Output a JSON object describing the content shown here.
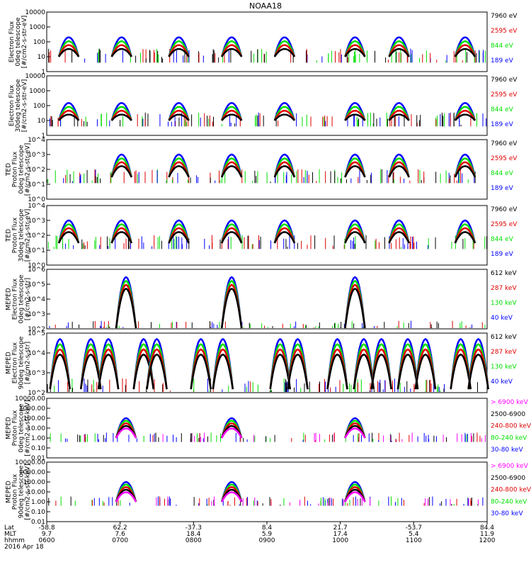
{
  "title": "NOAA18",
  "colors": {
    "black": "#000000",
    "red": "#e00000",
    "green": "#00e000",
    "blue": "#0000ff",
    "magenta": "#ff00ff"
  },
  "footer": {
    "row_labels": [
      "Lat",
      "MLT",
      "hhmm"
    ],
    "date": "2016 Apr 18",
    "columns": [
      {
        "lat": "-58.8",
        "mlt": "9.7",
        "hhmm": "0600"
      },
      {
        "lat": "62.2",
        "mlt": "7.6",
        "hhmm": "0700"
      },
      {
        "lat": "-37.3",
        "mlt": "18.4",
        "hhmm": "0800"
      },
      {
        "lat": "8.4",
        "mlt": "5.9",
        "hhmm": "0900"
      },
      {
        "lat": "21.7",
        "mlt": "17.4",
        "hhmm": "1000"
      },
      {
        "lat": "-53.7",
        "mlt": "5.4",
        "hhmm": "1100"
      },
      {
        "lat": "84.4",
        "mlt": "11.9",
        "hhmm": "1200"
      }
    ]
  },
  "chart_data": [
    {
      "type": "scatter",
      "ylabel": [
        "Electron Flux",
        "0deg telescope",
        "[#/cm2-s-str-eV]"
      ],
      "yticks": [
        "1",
        "10",
        "100",
        "1000",
        "10000"
      ],
      "legend": [
        {
          "label": "7960 eV",
          "color": "black"
        },
        {
          "label": "2595 eV",
          "color": "red"
        },
        {
          "label": "844 eV",
          "color": "green"
        },
        {
          "label": "189 eV",
          "color": "blue"
        }
      ],
      "passes": [
        0.05,
        0.17,
        0.3,
        0.42,
        0.54,
        0.7,
        0.8,
        0.95
      ],
      "baseline": 10,
      "peak": 200
    },
    {
      "type": "scatter",
      "ylabel": [
        "Electron Flux",
        "30deg telescope",
        "[#/cm2-s-str-eV]"
      ],
      "yticks": [
        "1",
        "10",
        "100",
        "1000",
        "10000"
      ],
      "legend": [
        {
          "label": "7960 eV",
          "color": "black"
        },
        {
          "label": "2595 eV",
          "color": "red"
        },
        {
          "label": "844 eV",
          "color": "green"
        },
        {
          "label": "189 eV",
          "color": "blue"
        }
      ],
      "passes": [
        0.05,
        0.17,
        0.3,
        0.42,
        0.54,
        0.7,
        0.8,
        0.95
      ],
      "baseline": 10,
      "peak": 150
    },
    {
      "type": "scatter",
      "ylabel": [
        "TED",
        "Proton Flux",
        "0deg telescope",
        "[#/cm2-s-str-eV]"
      ],
      "yticks": [
        "10^0",
        "10^1",
        "10^2",
        "10^3",
        "10^4"
      ],
      "legend": [
        {
          "label": "7960 eV",
          "color": "black"
        },
        {
          "label": "2595 eV",
          "color": "red"
        },
        {
          "label": "844 eV",
          "color": "green"
        },
        {
          "label": "189 eV",
          "color": "blue"
        }
      ],
      "passes": [
        0.17,
        0.3,
        0.42,
        0.54,
        0.7,
        0.8,
        0.95
      ],
      "baseline": 30,
      "peak": 1000
    },
    {
      "type": "scatter",
      "ylabel": [
        "TED",
        "Proton Flux",
        "30deg telescope",
        "[#/cm2-s-str-eV]"
      ],
      "yticks": [
        "10^0",
        "10^1",
        "10^2",
        "10^3",
        "10^4"
      ],
      "legend": [
        {
          "label": "7960 eV",
          "color": "black"
        },
        {
          "label": "2595 eV",
          "color": "red"
        },
        {
          "label": "844 eV",
          "color": "green"
        },
        {
          "label": "189 eV",
          "color": "blue"
        }
      ],
      "passes": [
        0.05,
        0.17,
        0.3,
        0.42,
        0.54,
        0.7,
        0.8,
        0.95
      ],
      "baseline": 30,
      "peak": 1000
    },
    {
      "type": "scatter",
      "ylabel": [
        "MEPED",
        "Electron Flux",
        "0deg telescope",
        "[#/cm2-s-str]"
      ],
      "yticks": [
        "10^2",
        "10^3",
        "10^4",
        "10^5",
        "10^6"
      ],
      "legend": [
        {
          "label": "612 keV",
          "color": "black"
        },
        {
          "label": "287 keV",
          "color": "red"
        },
        {
          "label": "130 keV",
          "color": "green"
        },
        {
          "label": "40 keV",
          "color": "blue"
        }
      ],
      "passes": [
        0.18,
        0.42,
        0.7
      ],
      "baseline": 100,
      "peak": 300000
    },
    {
      "type": "scatter",
      "ylabel": [
        "MEPED",
        "Electron Flux",
        "90deg telescope",
        "[#/cm2-s-str]"
      ],
      "yticks": [
        "10^2",
        "10^3",
        "10^4",
        "10^5"
      ],
      "legend": [
        {
          "label": "612 keV",
          "color": "black"
        },
        {
          "label": "287 keV",
          "color": "red"
        },
        {
          "label": "130 keV",
          "color": "green"
        },
        {
          "label": "40 keV",
          "color": "blue"
        }
      ],
      "passes": [
        0.03,
        0.1,
        0.14,
        0.22,
        0.25,
        0.35,
        0.4,
        0.53,
        0.57,
        0.66,
        0.72,
        0.76,
        0.82,
        0.86,
        0.94,
        0.98
      ],
      "baseline": 150,
      "peak": 50000
    },
    {
      "type": "scatter",
      "ylabel": [
        "MEPED",
        "Proton Flux",
        "0deg telescope",
        "[#/cm2-s-str-keV]"
      ],
      "yticks": [
        "0.01",
        "0.10",
        "1.00",
        "10.00",
        "100.00",
        "1000.00",
        "10000.00"
      ],
      "legend": [
        {
          "label": "> 6900 keV",
          "color": "magenta"
        },
        {
          "label": "2500-6900",
          "color": "black"
        },
        {
          "label": "240-800 keV",
          "color": "red"
        },
        {
          "label": "80-240 keV",
          "color": "green"
        },
        {
          "label": "30-80 keV",
          "color": "blue"
        }
      ],
      "passes": [
        0.18,
        0.42,
        0.7
      ],
      "baseline": 1,
      "peak": 100
    },
    {
      "type": "scatter",
      "ylabel": [
        "MEPED",
        "Proton Flux",
        "90deg telescope",
        "[#/cm2-s-str-keV]"
      ],
      "yticks": [
        "0.01",
        "0.10",
        "1.00",
        "10.00",
        "100.00",
        "1000.00",
        "10000.00"
      ],
      "legend": [
        {
          "label": "> 6900 keV",
          "color": "magenta"
        },
        {
          "label": "2500-6900",
          "color": "black"
        },
        {
          "label": "240-800 keV",
          "color": "red"
        },
        {
          "label": "80-240 keV",
          "color": "green"
        },
        {
          "label": "30-80 keV",
          "color": "blue"
        }
      ],
      "passes": [
        0.18,
        0.42,
        0.7
      ],
      "baseline": 1,
      "peak": 100
    }
  ]
}
